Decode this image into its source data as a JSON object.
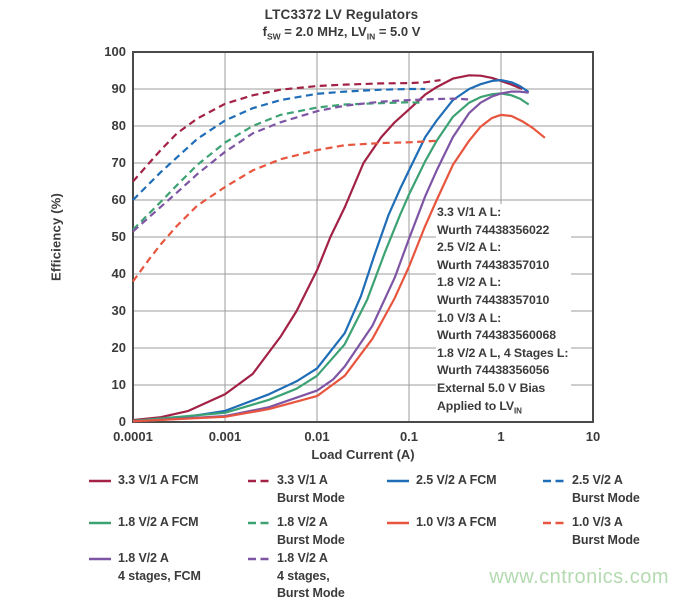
{
  "watermark": "www.cntronics.com",
  "chart_data": {
    "type": "line",
    "title": "LTC3372 LV Regulators",
    "subtitle_parts": {
      "f": "f",
      "f_sub": "SW",
      "mid": " = 2.0 MHz, LV",
      "mid_sub": "IN",
      "end": " = 5.0 V"
    },
    "xlabel": "Load Current (A)",
    "ylabel": "Efficiency (%)",
    "x_scale": "log",
    "xlim": [
      0.0001,
      10
    ],
    "ylim": [
      0,
      100
    ],
    "x_ticks": [
      "0.0001",
      "0.001",
      "0.01",
      "0.1",
      "1",
      "10"
    ],
    "y_ticks": [
      0,
      10,
      20,
      30,
      40,
      50,
      60,
      70,
      80,
      90,
      100
    ],
    "grid": true,
    "legend_position": "bottom",
    "annotation": [
      {
        "text": "3.3 V/1 A L:"
      },
      {
        "text": "Wurth 74438356022"
      },
      {
        "text": "2.5 V/2 A L:"
      },
      {
        "text": "Wurth 74438357010"
      },
      {
        "text": "1.8 V/2 A L:"
      },
      {
        "text": "Wurth 74438357010"
      },
      {
        "text": "1.0 V/3 A L:"
      },
      {
        "text": "Wurth 744383560068"
      },
      {
        "text": "1.8 V/2 A L, 4 Stages L:"
      },
      {
        "text": "Wurth 74438356056"
      },
      {
        "text": "External 5.0 V Bias"
      },
      {
        "text": "Applied to LV",
        "sub": "IN"
      }
    ],
    "series": [
      {
        "name": "3.3 V/1 A FCM",
        "style": "solid",
        "color": "#a22145",
        "points": [
          [
            0.0001,
            0.5
          ],
          [
            0.0002,
            1.3
          ],
          [
            0.0004,
            3
          ],
          [
            0.001,
            7.5
          ],
          [
            0.002,
            13
          ],
          [
            0.004,
            23
          ],
          [
            0.006,
            30
          ],
          [
            0.01,
            41
          ],
          [
            0.014,
            50
          ],
          [
            0.02,
            58
          ],
          [
            0.032,
            70
          ],
          [
            0.05,
            77
          ],
          [
            0.07,
            81
          ],
          [
            0.1,
            84.5
          ],
          [
            0.15,
            88.5
          ],
          [
            0.2,
            90.5
          ],
          [
            0.3,
            92.8
          ],
          [
            0.45,
            93.7
          ],
          [
            0.6,
            93.6
          ],
          [
            0.8,
            93
          ],
          [
            1,
            92.2
          ],
          [
            1.3,
            91.2
          ],
          [
            1.7,
            90
          ]
        ]
      },
      {
        "name": "2.5 V/2 A FCM",
        "style": "solid",
        "color": "#1e6db6",
        "points": [
          [
            0.0001,
            0.3
          ],
          [
            0.0003,
            1
          ],
          [
            0.001,
            3
          ],
          [
            0.003,
            7.5
          ],
          [
            0.006,
            11
          ],
          [
            0.01,
            14.5
          ],
          [
            0.02,
            24
          ],
          [
            0.03,
            34
          ],
          [
            0.042,
            45
          ],
          [
            0.06,
            56
          ],
          [
            0.08,
            63
          ],
          [
            0.1,
            68
          ],
          [
            0.15,
            77
          ],
          [
            0.2,
            81.5
          ],
          [
            0.3,
            87
          ],
          [
            0.45,
            90
          ],
          [
            0.6,
            91.3
          ],
          [
            0.8,
            92.2
          ],
          [
            1,
            92.4
          ],
          [
            1.3,
            91.8
          ],
          [
            1.6,
            90.8
          ],
          [
            2,
            89.2
          ]
        ]
      },
      {
        "name": "1.8 V/2 A FCM",
        "style": "solid",
        "color": "#3da273",
        "points": [
          [
            0.0001,
            0.3
          ],
          [
            0.001,
            2.5
          ],
          [
            0.003,
            6
          ],
          [
            0.006,
            9
          ],
          [
            0.01,
            12.5
          ],
          [
            0.02,
            21
          ],
          [
            0.035,
            33
          ],
          [
            0.055,
            46
          ],
          [
            0.08,
            56
          ],
          [
            0.1,
            61.5
          ],
          [
            0.15,
            70.5
          ],
          [
            0.2,
            76
          ],
          [
            0.3,
            82.5
          ],
          [
            0.45,
            86.3
          ],
          [
            0.6,
            87.8
          ],
          [
            0.8,
            88.6
          ],
          [
            1,
            88.8
          ],
          [
            1.3,
            88.3
          ],
          [
            1.6,
            87.4
          ],
          [
            2,
            85.8
          ]
        ]
      },
      {
        "name": "1.8 V/2 A 4 stages, FCM",
        "style": "solid",
        "color": "#7e55a4",
        "points": [
          [
            0.0001,
            0.2
          ],
          [
            0.001,
            1.6
          ],
          [
            0.003,
            4
          ],
          [
            0.01,
            8.5
          ],
          [
            0.015,
            11.5
          ],
          [
            0.02,
            15
          ],
          [
            0.04,
            26
          ],
          [
            0.07,
            39
          ],
          [
            0.1,
            49.5
          ],
          [
            0.15,
            61
          ],
          [
            0.2,
            68
          ],
          [
            0.3,
            77
          ],
          [
            0.45,
            83.5
          ],
          [
            0.6,
            86.3
          ],
          [
            0.8,
            88
          ],
          [
            1,
            88.8
          ],
          [
            1.3,
            89.3
          ],
          [
            1.6,
            89.3
          ],
          [
            2,
            89
          ]
        ]
      },
      {
        "name": "1.0 V/3 A FCM",
        "style": "solid",
        "color": "#e8553e",
        "points": [
          [
            0.0001,
            0.2
          ],
          [
            0.001,
            1.4
          ],
          [
            0.003,
            3.5
          ],
          [
            0.01,
            7
          ],
          [
            0.02,
            12.5
          ],
          [
            0.04,
            22.5
          ],
          [
            0.07,
            33.5
          ],
          [
            0.1,
            42
          ],
          [
            0.15,
            53
          ],
          [
            0.2,
            60
          ],
          [
            0.3,
            69.5
          ],
          [
            0.45,
            76
          ],
          [
            0.6,
            79.8
          ],
          [
            0.8,
            82.2
          ],
          [
            1,
            83
          ],
          [
            1.3,
            82.7
          ],
          [
            1.7,
            81.3
          ],
          [
            2.2,
            79.5
          ],
          [
            3,
            76.8
          ]
        ]
      },
      {
        "name": "3.3 V/1 A Burst Mode",
        "style": "dashed",
        "color": "#a22145",
        "points": [
          [
            0.0001,
            65
          ],
          [
            0.00015,
            70
          ],
          [
            0.0002,
            73.5
          ],
          [
            0.0003,
            78
          ],
          [
            0.0005,
            82
          ],
          [
            0.001,
            86
          ],
          [
            0.002,
            88.3
          ],
          [
            0.004,
            89.8
          ],
          [
            0.007,
            90.4
          ],
          [
            0.01,
            90.8
          ],
          [
            0.02,
            91.2
          ],
          [
            0.05,
            91.5
          ],
          [
            0.1,
            91.6
          ],
          [
            0.15,
            91.8
          ],
          [
            0.22,
            92.4
          ]
        ]
      },
      {
        "name": "2.5 V/2 A Burst Mode",
        "style": "dashed",
        "color": "#1e6db6",
        "points": [
          [
            0.0001,
            60
          ],
          [
            0.0002,
            67.5
          ],
          [
            0.0003,
            71.5
          ],
          [
            0.0005,
            76.5
          ],
          [
            0.001,
            81.5
          ],
          [
            0.002,
            84.8
          ],
          [
            0.004,
            87
          ],
          [
            0.01,
            88.7
          ],
          [
            0.02,
            89.3
          ],
          [
            0.05,
            89.8
          ],
          [
            0.1,
            90
          ],
          [
            0.15,
            90
          ]
        ]
      },
      {
        "name": "1.8 V/2 A Burst Mode",
        "style": "dashed",
        "color": "#3da273",
        "points": [
          [
            0.0001,
            52
          ],
          [
            0.0002,
            59.5
          ],
          [
            0.0003,
            64
          ],
          [
            0.0005,
            69.5
          ],
          [
            0.001,
            75.5
          ],
          [
            0.002,
            80
          ],
          [
            0.004,
            83
          ],
          [
            0.01,
            85
          ],
          [
            0.02,
            85.8
          ],
          [
            0.05,
            86.2
          ],
          [
            0.1,
            86.4
          ],
          [
            0.13,
            86.3
          ]
        ]
      },
      {
        "name": "1.8 V/2 A 4 stages, Burst Mode",
        "style": "dashed",
        "color": "#7e55a4",
        "points": [
          [
            0.0001,
            51.5
          ],
          [
            0.0003,
            62
          ],
          [
            0.0005,
            67
          ],
          [
            0.001,
            73
          ],
          [
            0.002,
            78
          ],
          [
            0.004,
            81
          ],
          [
            0.01,
            84
          ],
          [
            0.02,
            85.5
          ],
          [
            0.05,
            86.6
          ],
          [
            0.1,
            87
          ],
          [
            0.2,
            87.3
          ],
          [
            0.3,
            87.4
          ],
          [
            0.45,
            87.2
          ]
        ]
      },
      {
        "name": "1.0 V/3 A Burst Mode",
        "style": "dashed",
        "color": "#e8553e",
        "points": [
          [
            0.0001,
            38
          ],
          [
            0.00015,
            44
          ],
          [
            0.0002,
            48
          ],
          [
            0.0003,
            53
          ],
          [
            0.0005,
            58.5
          ],
          [
            0.001,
            63.5
          ],
          [
            0.002,
            68
          ],
          [
            0.004,
            71
          ],
          [
            0.01,
            73.5
          ],
          [
            0.02,
            74.8
          ],
          [
            0.05,
            75.4
          ],
          [
            0.1,
            75.6
          ],
          [
            0.2,
            76
          ]
        ]
      }
    ],
    "legend": {
      "columns": [
        [
          {
            "label_lines": [
              "3.3 V/1 A FCM"
            ],
            "color": "#a22145",
            "dash": false
          },
          {
            "label_lines": [
              "1.8 V/2 A FCM"
            ],
            "color": "#3da273",
            "dash": false
          },
          {
            "label_lines": [
              "1.8 V/2 A",
              "4 stages, FCM"
            ],
            "color": "#7e55a4",
            "dash": false
          }
        ],
        [
          {
            "label_lines": [
              "3.3 V/1 A",
              "Burst Mode"
            ],
            "color": "#a22145",
            "dash": true
          },
          {
            "label_lines": [
              "1.8 V/2 A",
              "Burst Mode"
            ],
            "color": "#3da273",
            "dash": true
          },
          {
            "label_lines": [
              "1.8 V/2 A",
              "4 stages,",
              "Burst Mode"
            ],
            "color": "#7e55a4",
            "dash": true
          }
        ],
        [
          {
            "label_lines": [
              "2.5 V/2 A FCM"
            ],
            "color": "#1e6db6",
            "dash": false
          },
          {
            "label_lines": [
              "1.0 V/3 A FCM"
            ],
            "color": "#e8553e",
            "dash": false
          }
        ],
        [
          {
            "label_lines": [
              "2.5 V/2 A",
              "Burst Mode"
            ],
            "color": "#1e6db6",
            "dash": true
          },
          {
            "label_lines": [
              "1.0 V/3 A",
              "Burst Mode"
            ],
            "color": "#e8553e",
            "dash": true
          }
        ]
      ]
    }
  }
}
